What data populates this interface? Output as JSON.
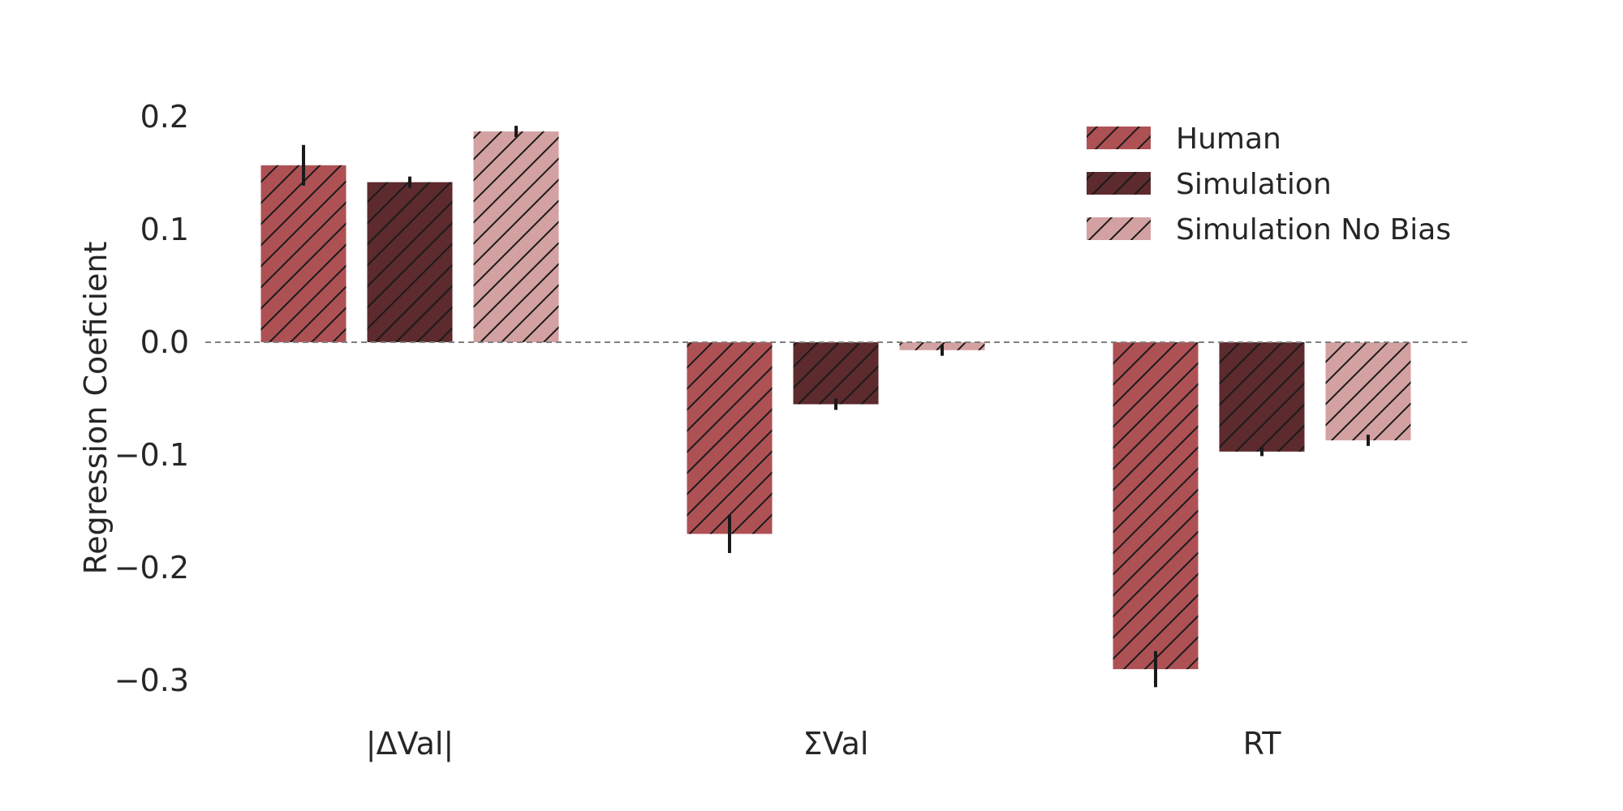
{
  "chart_data": {
    "type": "bar",
    "title": "",
    "xlabel": "",
    "ylabel": "Regression Coeficient",
    "categories": [
      "|ΔVal|",
      "ΣVal",
      "RT"
    ],
    "yticks": [
      "−0.3",
      "−0.2",
      "−0.1",
      "0.0",
      "0.1",
      "0.2"
    ],
    "ylim": [
      -0.33,
      0.215
    ],
    "grid": false,
    "reference_line": {
      "y": 0,
      "style": "dashed",
      "color": "#808080"
    },
    "hatch": "diagonal",
    "legend_position": "top-right",
    "series": [
      {
        "name": "Human",
        "color": "#ae5154",
        "values": [
          0.157,
          -0.17,
          -0.29
        ],
        "error": [
          0.018,
          0.017,
          0.016
        ]
      },
      {
        "name": "Simulation",
        "color": "#5d2a2e",
        "values": [
          0.142,
          -0.055,
          -0.097
        ],
        "error": [
          0.005,
          0.005,
          0.004
        ]
      },
      {
        "name": "Simulation No Bias",
        "color": "#d4a1a2",
        "values": [
          0.187,
          -0.007,
          -0.087
        ],
        "error": [
          0.005,
          0.005,
          0.005
        ]
      }
    ]
  }
}
